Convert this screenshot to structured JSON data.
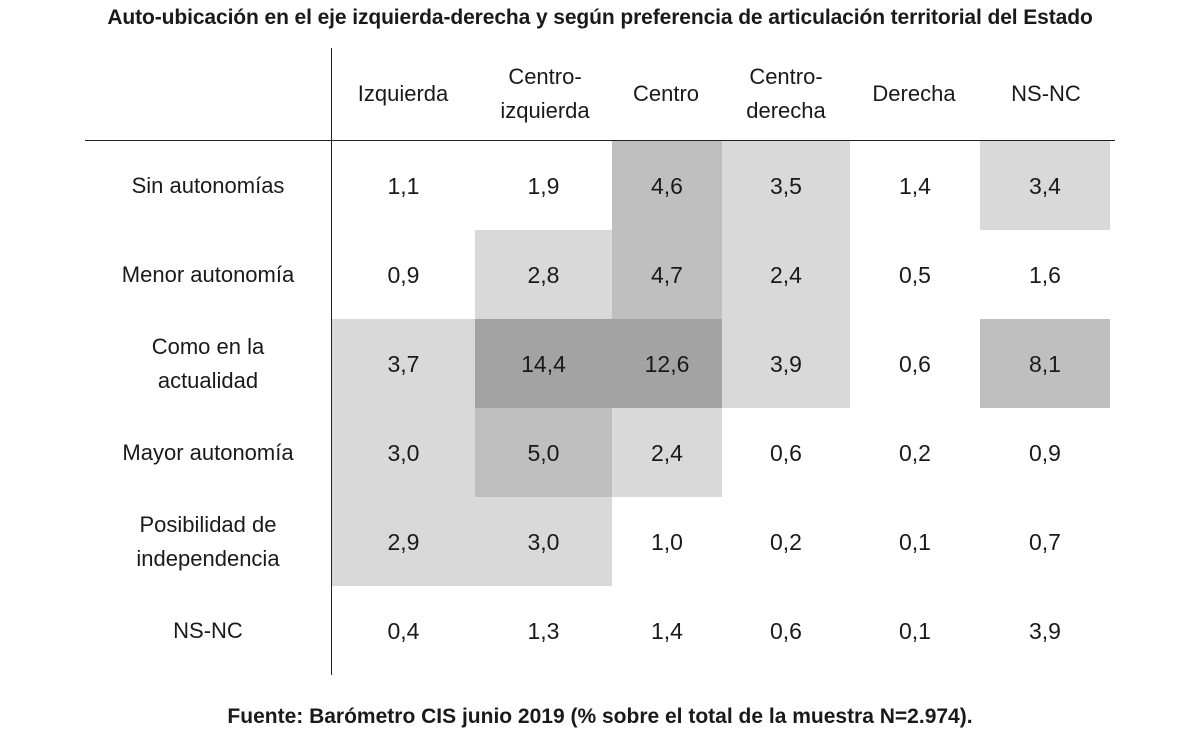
{
  "chart_data": {
    "type": "heatmap",
    "title": "Auto-ubicación en el eje izquierda-derecha y según preferencia de articulación territorial del Estado",
    "columns": [
      "Izquierda",
      "Centro-\nizquierda",
      "Centro",
      "Centro-\nderecha",
      "Derecha",
      "NS-NC"
    ],
    "rows": [
      "Sin autonomías",
      "Menor autonomía",
      "Como en la\nactualidad",
      "Mayor autonomía",
      "Posibilidad de\nindependencia",
      "NS-NC"
    ],
    "values": [
      [
        "1,1",
        "1,9",
        "4,6",
        "3,5",
        "1,4",
        "3,4"
      ],
      [
        "0,9",
        "2,8",
        "4,7",
        "2,4",
        "0,5",
        "1,6"
      ],
      [
        "3,7",
        "14,4",
        "12,6",
        "3,9",
        "0,6",
        "8,1"
      ],
      [
        "3,0",
        "5,0",
        "2,4",
        "0,6",
        "0,2",
        "0,9"
      ],
      [
        "2,9",
        "3,0",
        "1,0",
        "0,2",
        "0,1",
        "0,7"
      ],
      [
        "0,4",
        "1,3",
        "1,4",
        "0,6",
        "0,1",
        "3,9"
      ]
    ],
    "shading": [
      [
        0,
        0,
        2,
        1,
        0,
        1
      ],
      [
        0,
        1,
        2,
        1,
        0,
        0
      ],
      [
        1,
        3,
        3,
        1,
        0,
        2
      ],
      [
        1,
        2,
        1,
        0,
        0,
        0
      ],
      [
        1,
        1,
        0,
        0,
        0,
        0
      ],
      [
        0,
        0,
        0,
        0,
        0,
        0
      ]
    ],
    "shade_colors": [
      "#ffffff",
      "#d9d9d9",
      "#bfbfbf",
      "#a3a3a3"
    ],
    "source": "Fuente: Barómetro CIS junio 2019 (% sobre el total de la muestra N=2.974)."
  }
}
